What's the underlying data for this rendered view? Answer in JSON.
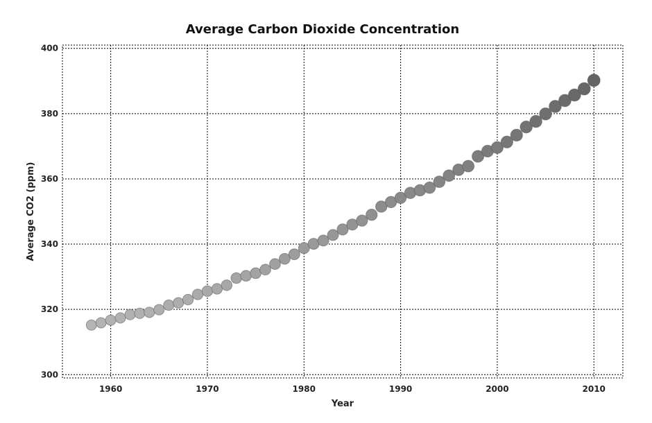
{
  "chart_data": {
    "type": "scatter",
    "title": "Average Carbon Dioxide Concentration",
    "xlabel": "Year",
    "ylabel": "Average CO2 (ppm)",
    "xlim": [
      1955,
      2013
    ],
    "ylim": [
      299,
      401
    ],
    "xticks": [
      1960,
      1970,
      1980,
      1990,
      2000,
      2010
    ],
    "yticks": [
      300,
      320,
      340,
      360,
      380,
      400
    ],
    "grid": true,
    "marker_color_start": "#b4b4b4",
    "marker_color_end": "#646464",
    "x": [
      1958,
      1959,
      1960,
      1961,
      1962,
      1963,
      1964,
      1965,
      1966,
      1967,
      1968,
      1969,
      1970,
      1971,
      1972,
      1973,
      1974,
      1975,
      1976,
      1977,
      1978,
      1979,
      1980,
      1981,
      1982,
      1983,
      1984,
      1985,
      1986,
      1987,
      1988,
      1989,
      1990,
      1991,
      1992,
      1993,
      1994,
      1995,
      1996,
      1997,
      1998,
      1999,
      2000,
      2001,
      2002,
      2003,
      2004,
      2005,
      2006,
      2007,
      2008,
      2009,
      2010
    ],
    "y": [
      315.2,
      315.9,
      316.7,
      317.4,
      318.4,
      318.8,
      319.1,
      319.9,
      321.3,
      322.0,
      323.0,
      324.6,
      325.6,
      326.3,
      327.4,
      329.6,
      330.3,
      331.1,
      332.2,
      333.9,
      335.5,
      336.9,
      338.8,
      340.1,
      341.1,
      342.8,
      344.5,
      346.0,
      347.2,
      349.0,
      351.5,
      352.9,
      354.2,
      355.7,
      356.5,
      357.3,
      359.1,
      361.0,
      362.8,
      363.9,
      366.9,
      368.5,
      369.6,
      371.3,
      373.4,
      375.9,
      377.6,
      379.9,
      382.2,
      384.0,
      385.7,
      387.6,
      390.2
    ]
  }
}
